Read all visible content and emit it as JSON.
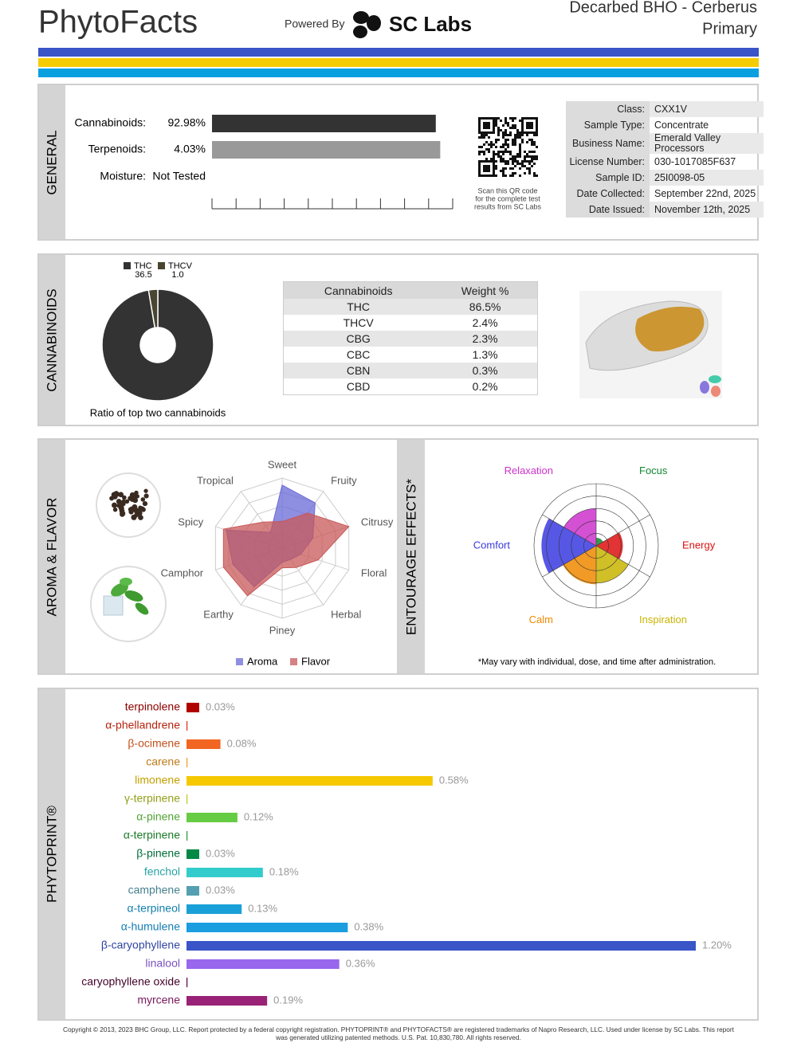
{
  "header": {
    "brand": "PhytoFacts",
    "powered_by": "Powered By",
    "lab": "SC Labs",
    "product": "Decarbed BHO - Cerberus",
    "category": "Primary"
  },
  "general": {
    "title": "GENERAL",
    "chart_data": {
      "type": "bar",
      "xlim": [
        0,
        100
      ],
      "xticks": [
        0,
        10,
        20,
        30,
        40,
        50,
        60,
        70,
        80,
        90,
        100
      ],
      "bars": [
        {
          "label": "Cannabinoids:",
          "value": 92.98,
          "value_label": "92.98%",
          "color": "#333333"
        },
        {
          "label": "Terpenoids:",
          "value": 4.03,
          "value_label": "4.03%",
          "color": "#999999",
          "xlim": [
            0,
            4.25
          ]
        },
        {
          "label": "Moisture:",
          "value_label": "Not Tested"
        }
      ]
    },
    "qr_caption": [
      "Scan this QR code",
      "for the complete test",
      "results from SC Labs"
    ],
    "info": [
      {
        "label": "Class:",
        "value": "CXX1V"
      },
      {
        "label": "Sample Type:",
        "value": "Concentrate"
      },
      {
        "label": "Business Name:",
        "value": "Emerald Valley Processors"
      },
      {
        "label": "License Number:",
        "value": "030-1017085F637"
      },
      {
        "label": "Sample ID:",
        "value": "25I0098-05"
      },
      {
        "label": "Date Collected:",
        "value": "September 22nd, 2025"
      },
      {
        "label": "Date Issued:",
        "value": "November 12th, 2025"
      }
    ]
  },
  "cannabinoids": {
    "title": "CANNABINOIDS",
    "chart_data": {
      "type": "pie",
      "donut": true,
      "categories": [
        "THC",
        "THCV"
      ],
      "values": [
        36.5,
        1.0
      ],
      "value_labels": [
        "36.5",
        "1.0"
      ],
      "colors": [
        "#333333",
        "#4a4530"
      ],
      "caption": "Ratio of top two cannabinoids"
    },
    "table": {
      "header": [
        "Cannabinoids",
        "Weight %"
      ],
      "rows": [
        [
          "THC",
          "86.5%"
        ],
        [
          "THCV",
          "2.4%"
        ],
        [
          "CBG",
          "2.3%"
        ],
        [
          "CBC",
          "1.3%"
        ],
        [
          "CBN",
          "0.3%"
        ],
        [
          "CBD",
          "0.2%"
        ]
      ]
    }
  },
  "aroma_flavor": {
    "title": "AROMA & FLAVOR",
    "chart_data": {
      "type": "radar",
      "axes": [
        "Sweet",
        "Fruity",
        "Citrusy",
        "Floral",
        "Herbal",
        "Piney",
        "Earthy",
        "Camphor",
        "Spicy",
        "Tropical"
      ],
      "rlim": [
        0,
        5
      ],
      "rticks": [
        1,
        2,
        3,
        4,
        5
      ],
      "series": [
        {
          "name": "Aroma",
          "color": "#6a6ad8",
          "values": [
            4.5,
            4.0,
            2.3,
            1.4,
            1.0,
            1.0,
            3.4,
            3.7,
            4.2,
            1.4
          ]
        },
        {
          "name": "Flavor",
          "color": "#c85858",
          "values": [
            1.9,
            3.1,
            5.0,
            2.7,
            1.7,
            1.4,
            4.2,
            4.4,
            4.4,
            2.3
          ]
        }
      ]
    }
  },
  "entourage": {
    "title": "ENTOURAGE EFFECTS*",
    "chart_data": {
      "type": "polar-area",
      "categories": [
        "Focus",
        "Energy",
        "Inspiration",
        "Calm",
        "Comfort",
        "Relaxation"
      ],
      "values": [
        13,
        43,
        60,
        62,
        88,
        60
      ],
      "colors": [
        "#118833",
        "#dd1111",
        "#c8b400",
        "#ee8800",
        "#3a3ae0",
        "#cc33cc"
      ],
      "rlim": [
        0,
        100
      ],
      "rticks": [
        20,
        40,
        60,
        80,
        100
      ]
    },
    "note": "*May vary with individual, dose, and time after administration."
  },
  "phytoprint": {
    "title": "PHYTOPRINT®",
    "chart_data": {
      "type": "bar",
      "orientation": "horizontal",
      "categories": [
        "terpinolene",
        "α-phellandrene",
        "β-ocimene",
        "carene",
        "limonene",
        "γ-terpinene",
        "α-pinene",
        "α-terpinene",
        "β-pinene",
        "fenchol",
        "camphene",
        "α-terpineol",
        "α-humulene",
        "β-caryophyllene",
        "linalool",
        "caryophyllene oxide",
        "myrcene"
      ],
      "values": [
        0.03,
        0,
        0.08,
        0,
        0.58,
        0,
        0.12,
        0,
        0.03,
        0.18,
        0.03,
        0.13,
        0.38,
        1.2,
        0.36,
        0,
        0.19
      ],
      "value_labels": [
        "0.03%",
        null,
        "0.08%",
        null,
        "0.58%",
        null,
        "0.12%",
        null,
        "0.03%",
        "0.18%",
        "0.03%",
        "0.13%",
        "0.38%",
        "1.20%",
        "0.36%",
        null,
        "0.19%"
      ],
      "colors": [
        "#b00000",
        "#e02a10",
        "#f26522",
        "#f09a20",
        "#f5c800",
        "#b8c820",
        "#66cc44",
        "#229933",
        "#008844",
        "#33cccc",
        "#55a0b0",
        "#1aa0d8",
        "#1a9ee0",
        "#3a55c8",
        "#9966ee",
        "#550033",
        "#992277"
      ]
    }
  },
  "footer": {
    "lines": [
      "Copyright © 2013, 2023 BHC Group, LLC. Report protected by a federal copyright registration. PHYTOPRINT® and PHYTOFACTS® are registered trademarks of Napro Research, LLC. Used under license by SC Labs. This report",
      "was generated utilizing patented methods. U.S. Pat. 10,830,780. All rights reserved."
    ]
  }
}
